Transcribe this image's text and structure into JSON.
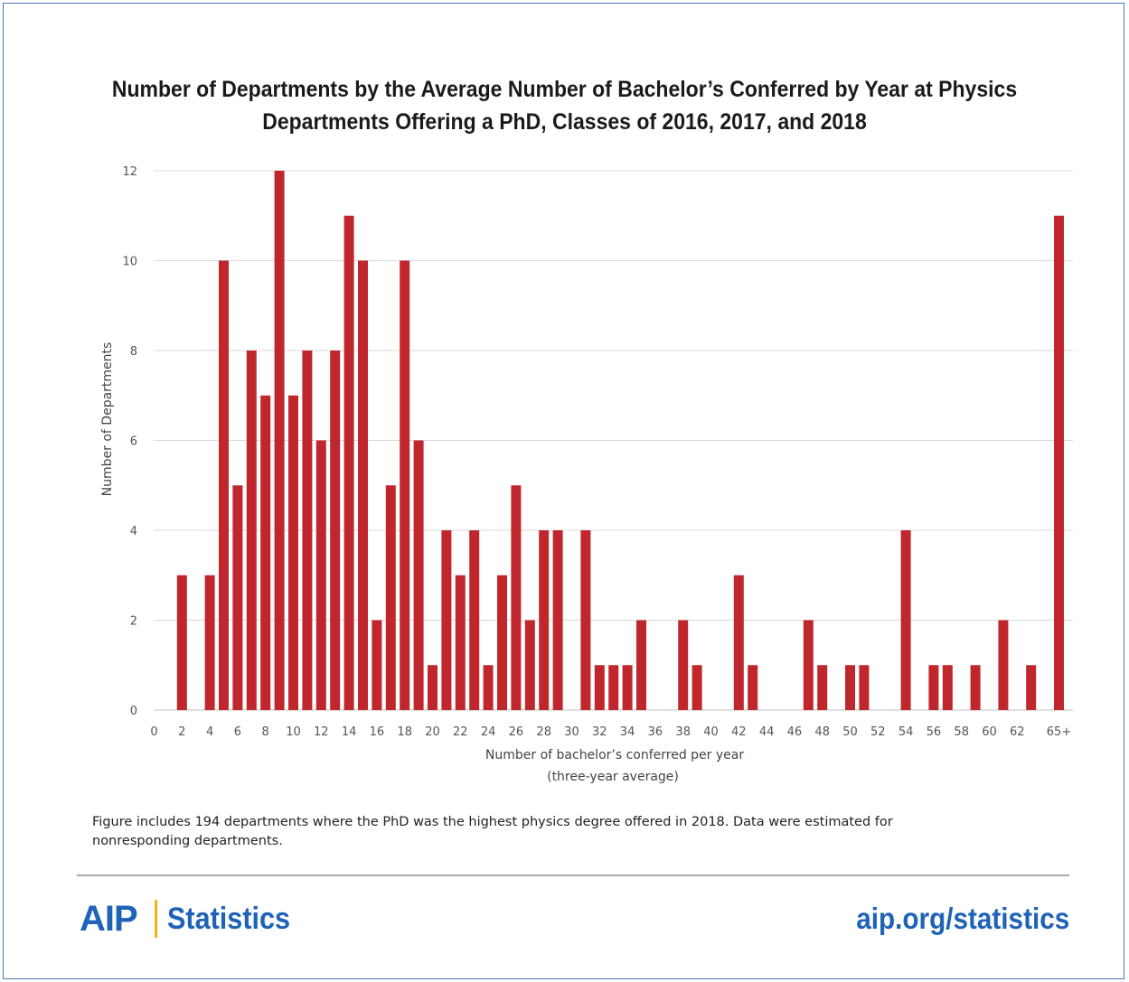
{
  "title_line1": "Number of Departments by the Average Number of Bachelor’s Conferred by Year at Physics",
  "title_line2": "Departments Offering a PhD, Classes of 2016, 2017, and 2018",
  "note": "Figure includes 194 departments where the PhD was the highest physics degree offered in 2018. Data were estimated for nonresponding departments.",
  "footer": {
    "brand_aip": "AIP",
    "brand_stats": "Statistics",
    "url": "aip.org/statistics"
  },
  "colors": {
    "bar": "#c0272d",
    "grid": "#d9d9d9",
    "brand": "#1e63b8",
    "brand_accent": "#f2b21a"
  },
  "chart_data": {
    "type": "bar",
    "title": "Number of Departments by the Average Number of Bachelor’s Conferred by Year at Physics Departments Offering a PhD, Classes of 2016, 2017, and 2018",
    "xlabel_line1": "Number of bachelor’s conferred per year",
    "xlabel_line2": "(three-year average)",
    "ylabel": "Number of Departments",
    "ylim": [
      0,
      12
    ],
    "yticks": [
      0,
      2,
      4,
      6,
      8,
      10,
      12
    ],
    "xticks": [
      "0",
      "2",
      "4",
      "6",
      "8",
      "10",
      "12",
      "14",
      "16",
      "18",
      "20",
      "22",
      "24",
      "26",
      "28",
      "30",
      "32",
      "34",
      "36",
      "38",
      "40",
      "42",
      "44",
      "46",
      "48",
      "50",
      "52",
      "54",
      "56",
      "58",
      "60",
      "62",
      "65+"
    ],
    "grid": true,
    "categories": [
      "0",
      "1",
      "2",
      "3",
      "4",
      "5",
      "6",
      "7",
      "8",
      "9",
      "10",
      "11",
      "12",
      "13",
      "14",
      "15",
      "16",
      "17",
      "18",
      "19",
      "20",
      "21",
      "22",
      "23",
      "24",
      "25",
      "26",
      "27",
      "28",
      "29",
      "30",
      "31",
      "32",
      "33",
      "34",
      "35",
      "36",
      "37",
      "38",
      "39",
      "40",
      "41",
      "42",
      "43",
      "44",
      "45",
      "46",
      "47",
      "48",
      "49",
      "50",
      "51",
      "52",
      "53",
      "54",
      "55",
      "56",
      "57",
      "58",
      "59",
      "60",
      "61",
      "62",
      "63",
      "64",
      "65+"
    ],
    "values": [
      0,
      0,
      3,
      0,
      3,
      10,
      5,
      8,
      7,
      12,
      7,
      8,
      6,
      8,
      11,
      10,
      2,
      5,
      10,
      6,
      1,
      4,
      3,
      4,
      1,
      3,
      5,
      2,
      4,
      4,
      0,
      4,
      1,
      1,
      1,
      2,
      0,
      0,
      2,
      1,
      0,
      0,
      3,
      1,
      0,
      0,
      0,
      2,
      1,
      0,
      1,
      1,
      0,
      0,
      4,
      0,
      1,
      1,
      0,
      1,
      0,
      2,
      0,
      1,
      0,
      11
    ]
  }
}
